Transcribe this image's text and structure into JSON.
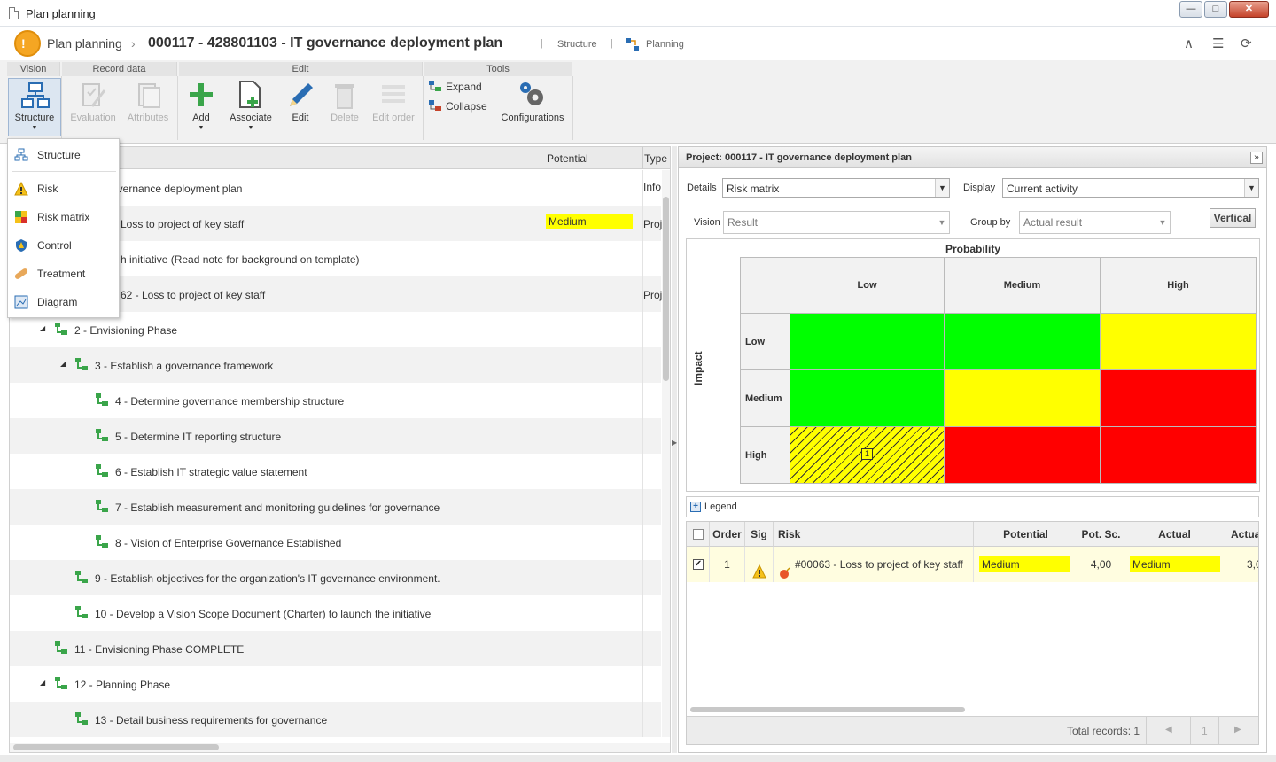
{
  "window": {
    "title": "Plan planning"
  },
  "header": {
    "app_title": "Plan planning",
    "chevron": "›",
    "record_title": "000117 - 428801103 - IT governance deployment plan",
    "links": [
      "Structure",
      "Planning"
    ],
    "separator": "|"
  },
  "toolbar": {
    "groups": [
      "Vision",
      "Record data",
      "Edit",
      "Tools"
    ],
    "buttons": {
      "structure": "Structure",
      "evaluation": "Evaluation",
      "attributes": "Attributes",
      "add": "Add",
      "associate": "Associate",
      "edit": "Edit",
      "delete": "Delete",
      "edit_order": "Edit order",
      "expand": "Expand",
      "collapse": "Collapse",
      "configurations": "Configurations"
    }
  },
  "vision_menu": {
    "items": [
      "Structure",
      "Risk",
      "Risk matrix",
      "Control",
      "Treatment",
      "Diagram"
    ]
  },
  "tree": {
    "columns": {
      "potential": "Potential",
      "type": "Type"
    },
    "rows": [
      {
        "label": "overnance deployment plan",
        "type": "Info"
      },
      {
        "label": "Loss to project of key staff",
        "potential": "Medium",
        "type": "Proj"
      },
      {
        "label": "h initiative (Read note for background on template)"
      },
      {
        "label": "62 - Loss to project of key staff",
        "type": "Proj"
      },
      {
        "label": "2 - Envisioning Phase"
      },
      {
        "label": "3 - Establish a governance framework"
      },
      {
        "label": "4 - Determine governance membership structure"
      },
      {
        "label": "5 - Determine IT reporting structure"
      },
      {
        "label": "6 - Establish IT strategic value statement"
      },
      {
        "label": "7 - Establish measurement and monitoring guidelines for governance"
      },
      {
        "label": "8 - Vision of Enterprise Governance Established"
      },
      {
        "label": "9 - Establish objectives for the organization's IT governance environment."
      },
      {
        "label": "10 - Develop a Vision Scope Document (Charter) to launch the initiative"
      },
      {
        "label": "11 - Envisioning Phase COMPLETE"
      },
      {
        "label": "12 - Planning Phase"
      },
      {
        "label": "13 - Detail business requirements for governance"
      }
    ]
  },
  "panel": {
    "title": "Project: 000117 - IT governance deployment plan",
    "details_label": "Details",
    "details_value": "Risk matrix",
    "display_label": "Display",
    "display_value": "Current activity",
    "vision_label": "Vision",
    "vision_value": "Result",
    "groupby_label": "Group by",
    "groupby_value": "Actual result",
    "vertical_button": "Vertical",
    "matrix": {
      "probability_label": "Probability",
      "impact_label": "Impact",
      "columns": [
        "Low",
        "Medium",
        "High"
      ],
      "rows": [
        "Low",
        "Medium",
        "High"
      ],
      "colors": {
        "green": "#00ff00",
        "yellow": "#ffff00",
        "red": "#ff0000"
      },
      "cell_count": "1"
    },
    "legend_label": "Legend",
    "results": {
      "columns": [
        "Order",
        "Sig",
        "Risk",
        "Potential",
        "Pot. Sc.",
        "Actual",
        "Actua"
      ],
      "row": {
        "order": "1",
        "risk": "#00063 - Loss to project of key staff",
        "potential": "Medium",
        "pot_score": "4,00",
        "actual": "Medium",
        "actual_score": "3,0"
      },
      "total": "Total records: 1",
      "page": "1"
    }
  }
}
